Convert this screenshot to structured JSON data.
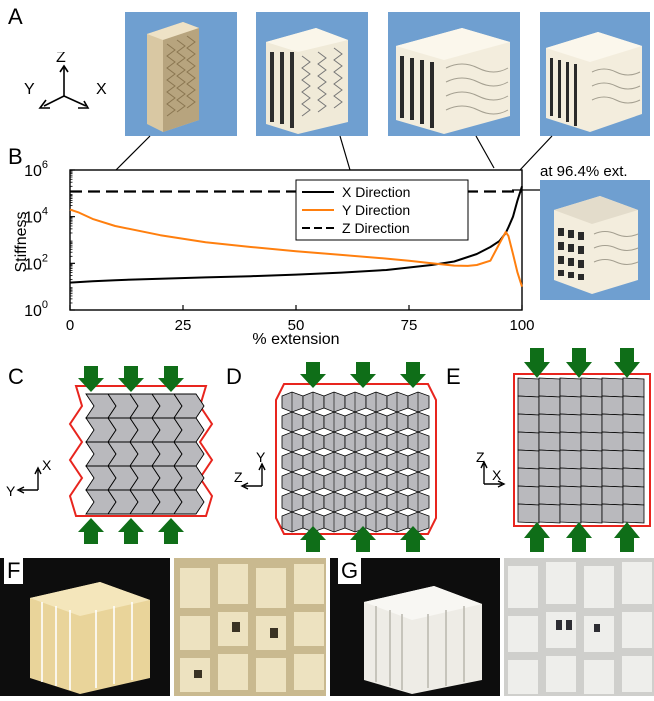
{
  "panels": {
    "A": "A",
    "B": "B",
    "C": "C",
    "D": "D",
    "E": "E",
    "F": "F",
    "G": "G"
  },
  "axes_triad_A": {
    "z": "Z",
    "y": "Y",
    "x": "X"
  },
  "triad_C": {
    "up": "X",
    "left": "Y"
  },
  "triad_D": {
    "up": "Y",
    "left": "Z"
  },
  "triad_E": {
    "up": "Z",
    "right": "X"
  },
  "inset_label": "at 96.4% ext.",
  "colors": {
    "x_series": "#000000",
    "y_series": "#ff7f0e",
    "z_series": "#000000",
    "outline_red": "#e8251e",
    "arrow_green": "#0f6e18",
    "cell_gray": "#b9b9bd",
    "render_bg": "#6f9fd0"
  },
  "chart_data": {
    "type": "line",
    "xlabel": "% extension",
    "ylabel": "Stiffness",
    "y_scale": "log",
    "xlim": [
      0,
      100
    ],
    "ylim": [
      1,
      1000000
    ],
    "x_ticks": [
      "0",
      "25",
      "50",
      "75",
      "100"
    ],
    "y_ticks": [
      {
        "base": "10",
        "exp": "0",
        "value": 1
      },
      {
        "base": "10",
        "exp": "2",
        "value": 100
      },
      {
        "base": "10",
        "exp": "4",
        "value": 10000
      },
      {
        "base": "10",
        "exp": "6",
        "value": 1000000
      }
    ],
    "legend_position": "right",
    "series": [
      {
        "name": "X Direction",
        "style": "solid",
        "color": "#000000",
        "x": [
          0,
          5,
          10,
          20,
          30,
          40,
          50,
          60,
          70,
          80,
          85,
          90,
          93,
          95,
          96.4,
          97,
          98,
          99,
          100
        ],
        "y": [
          15,
          17,
          19,
          22,
          25,
          28,
          33,
          40,
          52,
          85,
          120,
          250,
          500,
          900,
          2000,
          3500,
          10000,
          50000,
          200000
        ]
      },
      {
        "name": "Y Direction",
        "style": "solid",
        "color": "#ff7f0e",
        "x": [
          0,
          2,
          5,
          10,
          20,
          30,
          40,
          50,
          60,
          70,
          75,
          80,
          85,
          88,
          90,
          93,
          95,
          96.4,
          97,
          98,
          99,
          100
        ],
        "y": [
          20000,
          15000,
          8000,
          4000,
          1600,
          800,
          500,
          330,
          230,
          160,
          130,
          100,
          80,
          78,
          85,
          130,
          700,
          2200,
          1500,
          250,
          40,
          10
        ]
      },
      {
        "name": "Z Direction",
        "style": "dashed",
        "color": "#000000",
        "x": [
          0,
          100
        ],
        "y": [
          120000,
          120000
        ]
      }
    ]
  }
}
